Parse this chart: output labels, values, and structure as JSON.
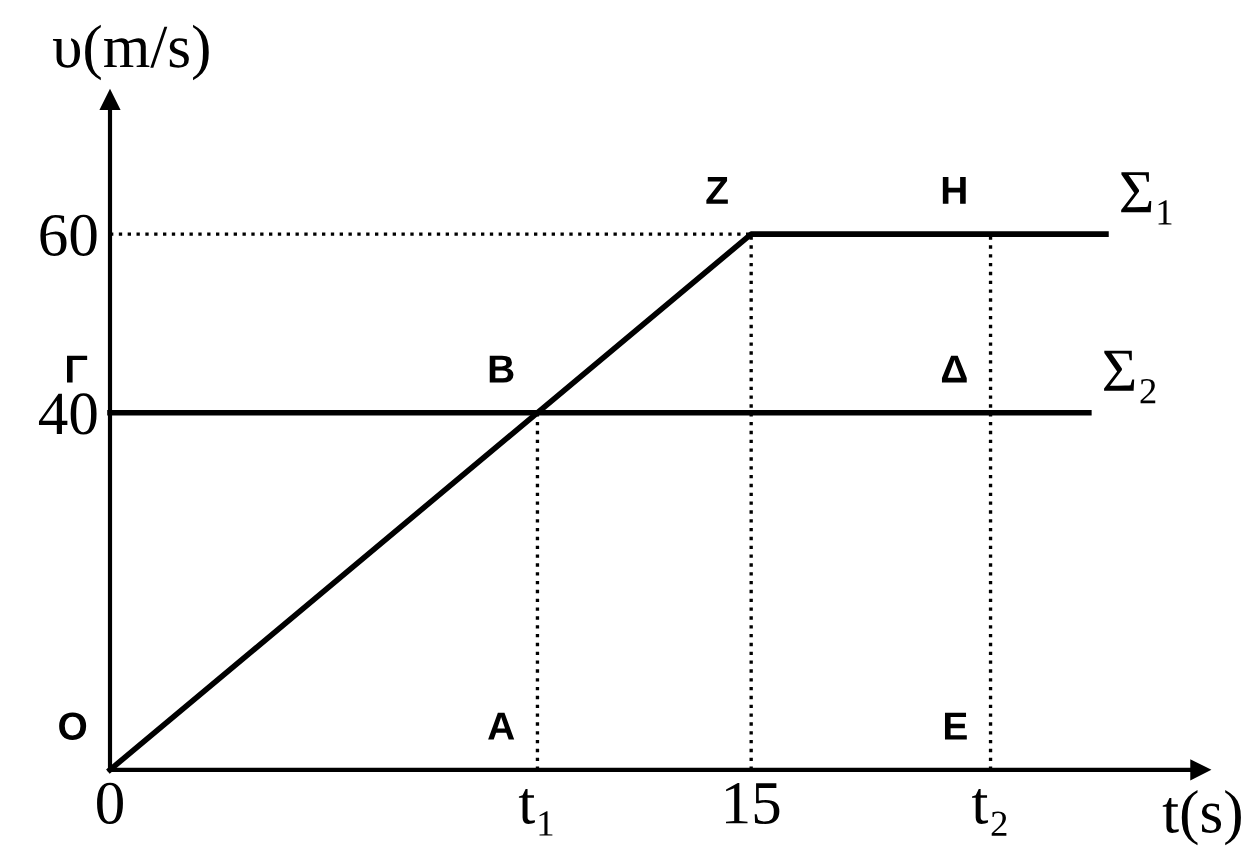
{
  "chart_data": {
    "type": "line",
    "xlabel": "t(s)",
    "ylabel": "υ(m/s)",
    "series": [
      {
        "name": "Σ₁",
        "color": "#000000",
        "x": [
          0,
          15,
          23.3
        ],
        "values": [
          0,
          60,
          60
        ]
      },
      {
        "name": "Σ₂",
        "color": "#000000",
        "x": [
          0,
          22.9
        ],
        "values": [
          40,
          40
        ]
      },
      {
        "color": "#000000",
        "x": [
          10,
          10
        ],
        "values": [
          0,
          40
        ],
        "line_style": "dotted"
      },
      {
        "color": "#000000",
        "x": [
          15,
          15
        ],
        "values": [
          0,
          60
        ],
        "line_style": "dotted"
      },
      {
        "color": "#000000",
        "x": [
          20.6,
          20.6
        ],
        "values": [
          0,
          60
        ],
        "line_style": "dotted"
      },
      {
        "color": "#000000",
        "x": [
          0,
          15
        ],
        "values": [
          60,
          60
        ],
        "line_style": "dotted"
      }
    ],
    "xlim": [
      0,
      25.5
    ],
    "ylim": [
      0,
      75
    ],
    "xticks": [
      0,
      {
        "value": 10,
        "label": "t₁"
      },
      15,
      {
        "value": 20.6,
        "label": "t₂"
      }
    ],
    "yticks": [
      40,
      60
    ],
    "annotations": [
      {
        "text": "O",
        "x": 0,
        "y": 0
      },
      {
        "text": "A",
        "x": 10,
        "y": 0
      },
      {
        "text": "B",
        "x": 10,
        "y": 40
      },
      {
        "text": "Γ",
        "x": 0,
        "y": 40
      },
      {
        "text": "Δ",
        "x": 20.6,
        "y": 40
      },
      {
        "text": "Z",
        "x": 15,
        "y": 60
      },
      {
        "text": "H",
        "x": 20.6,
        "y": 60
      },
      {
        "text": "E",
        "x": 20.6,
        "y": 0
      }
    ],
    "grid": false,
    "legend": false,
    "marker": "none",
    "line_style": "solid"
  }
}
